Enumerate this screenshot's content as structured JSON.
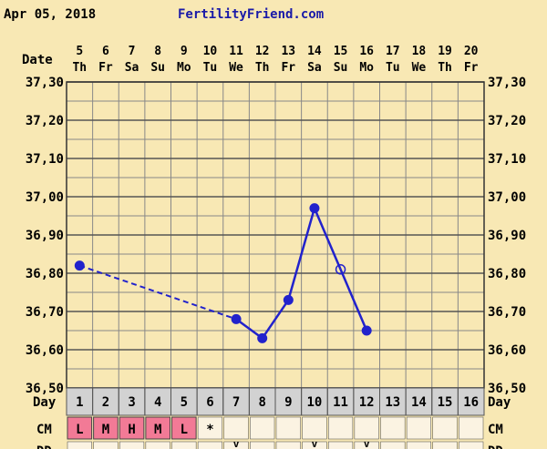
{
  "header": {
    "date": "Apr 05, 2018",
    "site": "FertilityFriend.com"
  },
  "labels": {
    "date_row": "Date",
    "day_row": "Day",
    "cm_row": "CM",
    "bottom_row": "DD"
  },
  "colors": {
    "background": "#f8e8b4",
    "grid_line": "#888888",
    "line": "#2222cc",
    "cm_marked": "#f27a96",
    "cm_blank": "#fbf3e2",
    "day_row_bg": "#d2d2d2"
  },
  "chart_data": {
    "type": "line",
    "x": [
      {
        "date": "5",
        "weekday": "Th"
      },
      {
        "date": "6",
        "weekday": "Fr"
      },
      {
        "date": "7",
        "weekday": "Sa"
      },
      {
        "date": "8",
        "weekday": "Su"
      },
      {
        "date": "9",
        "weekday": "Mo"
      },
      {
        "date": "10",
        "weekday": "Tu"
      },
      {
        "date": "11",
        "weekday": "We"
      },
      {
        "date": "12",
        "weekday": "Th"
      },
      {
        "date": "13",
        "weekday": "Fr"
      },
      {
        "date": "14",
        "weekday": "Sa"
      },
      {
        "date": "15",
        "weekday": "Su"
      },
      {
        "date": "16",
        "weekday": "Mo"
      },
      {
        "date": "17",
        "weekday": "Tu"
      },
      {
        "date": "18",
        "weekday": "We"
      },
      {
        "date": "19",
        "weekday": "Th"
      },
      {
        "date": "20",
        "weekday": "Fr"
      }
    ],
    "ylim": [
      36.5,
      37.3
    ],
    "y_ticks": [
      "37,30",
      "37,20",
      "37,10",
      "37,00",
      "36,90",
      "36,80",
      "36,70",
      "36,60",
      "36,50"
    ],
    "temperatures": [
      {
        "day": 1,
        "value": 36.82,
        "marker": "filled"
      },
      {
        "day": 7,
        "value": 36.68,
        "marker": "filled"
      },
      {
        "day": 8,
        "value": 36.63,
        "marker": "filled"
      },
      {
        "day": 9,
        "value": 36.73,
        "marker": "filled"
      },
      {
        "day": 10,
        "value": 36.97,
        "marker": "filled"
      },
      {
        "day": 11,
        "value": 36.81,
        "marker": "open"
      },
      {
        "day": 12,
        "value": 36.65,
        "marker": "filled"
      }
    ],
    "dashed_segments": [
      [
        1,
        7
      ]
    ],
    "solid_segments": [
      [
        7,
        8
      ],
      [
        8,
        9
      ],
      [
        9,
        10
      ],
      [
        10,
        11
      ],
      [
        11,
        12
      ]
    ],
    "grid": true
  },
  "cycle_days": [
    "1",
    "2",
    "3",
    "4",
    "5",
    "6",
    "7",
    "8",
    "9",
    "10",
    "11",
    "12",
    "13",
    "14",
    "15",
    "16"
  ],
  "cm": [
    "L",
    "M",
    "H",
    "M",
    "L",
    "*",
    "",
    "",
    "",
    "",
    "",
    "",
    "",
    "",
    "",
    ""
  ],
  "bottom_marks": [
    "",
    "",
    "",
    "",
    "",
    "",
    "v",
    "",
    "",
    "v",
    "",
    "v",
    "",
    "",
    "",
    ""
  ]
}
